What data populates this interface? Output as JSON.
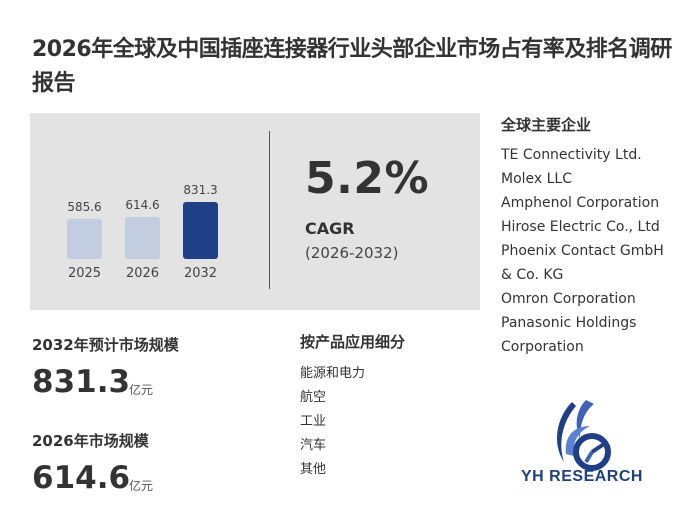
{
  "title": "2026年全球及中国插座连接器行业头部企业市场占有率及排名调研报告",
  "chart_data": {
    "type": "bar",
    "categories": [
      "2025",
      "2026",
      "2032"
    ],
    "values": [
      585.6,
      614.6,
      831.3
    ],
    "value_labels": [
      "585.6",
      "614.6",
      "831.3"
    ],
    "colors": [
      "#c2cee0",
      "#c2cee0",
      "#1f3f86"
    ]
  },
  "cagr": {
    "value": "5.2%",
    "label": "CAGR",
    "period": "(2026-2032)"
  },
  "stats": [
    {
      "label": "2032年预计市场规模",
      "value": "831.3",
      "unit": "亿元"
    },
    {
      "label": "2026年市场规模",
      "value": "614.6",
      "unit": "亿元"
    }
  ],
  "segments": {
    "title": "按产品应用细分",
    "items": [
      "能源和电力",
      "航空",
      "工业",
      "汽车",
      "其他"
    ]
  },
  "companies": {
    "title": "全球主要企业",
    "items": [
      "TE Connectivity Ltd.",
      "Molex LLC",
      "Amphenol Corporation",
      "Hirose Electric Co., Ltd",
      "Phoenix Contact GmbH",
      "& Co. KG",
      "Omron Corporation",
      "Panasonic Holdings",
      "Corporation"
    ]
  },
  "logo": {
    "text": "YH RESEARCH",
    "accent": "#1f3f86"
  }
}
